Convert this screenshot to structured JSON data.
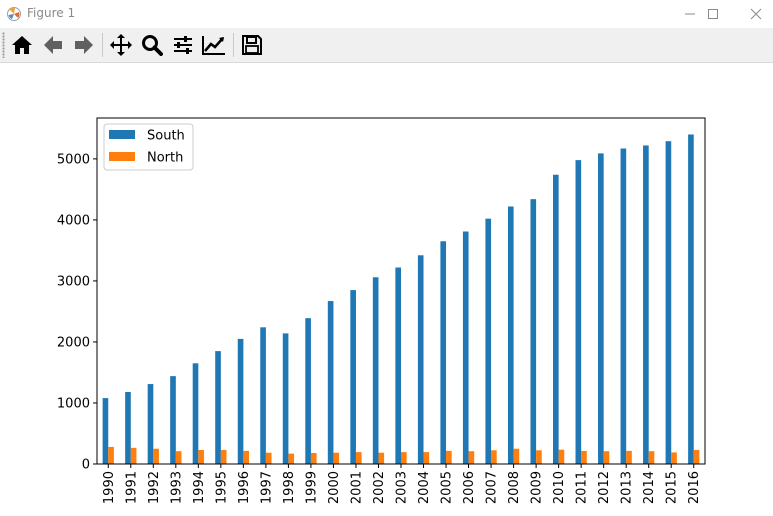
{
  "window": {
    "title": "Figure 1",
    "minimize_icon": "minimize-icon",
    "maximize_icon": "maximize-icon",
    "close_icon": "close-icon"
  },
  "toolbar": {
    "buttons": [
      {
        "name": "home-button",
        "icon": "home-icon"
      },
      {
        "name": "back-button",
        "icon": "arrow-left-icon"
      },
      {
        "name": "forward-button",
        "icon": "arrow-right-icon"
      },
      {
        "name": "pan-button",
        "icon": "move-icon"
      },
      {
        "name": "zoom-button",
        "icon": "magnifier-icon"
      },
      {
        "name": "configure-subplots-button",
        "icon": "sliders-icon"
      },
      {
        "name": "edit-axis-button",
        "icon": "line-chart-icon"
      },
      {
        "name": "save-button",
        "icon": "floppy-disk-icon"
      }
    ]
  },
  "chart_data": {
    "type": "bar",
    "categories": [
      "1990",
      "1991",
      "1992",
      "1993",
      "1994",
      "1995",
      "1996",
      "1997",
      "1998",
      "1999",
      "2000",
      "2001",
      "2002",
      "2003",
      "2004",
      "2005",
      "2006",
      "2007",
      "2008",
      "2009",
      "2010",
      "2011",
      "2012",
      "2013",
      "2014",
      "2015",
      "2016"
    ],
    "series": [
      {
        "name": "South",
        "color": "#1f77b4",
        "values": [
          1080,
          1180,
          1310,
          1440,
          1650,
          1850,
          2050,
          2240,
          2140,
          2390,
          2670,
          2850,
          3060,
          3220,
          3420,
          3650,
          3810,
          4020,
          4220,
          4340,
          4740,
          4980,
          5090,
          5170,
          5220,
          5290,
          5400
        ]
      },
      {
        "name": "North",
        "color": "#ff7f0e",
        "values": [
          280,
          265,
          250,
          210,
          230,
          230,
          215,
          185,
          170,
          180,
          185,
          195,
          185,
          195,
          195,
          215,
          210,
          225,
          250,
          225,
          235,
          215,
          210,
          215,
          210,
          190,
          230
        ]
      }
    ],
    "yticks": [
      "0",
      "1000",
      "2000",
      "3000",
      "4000",
      "5000"
    ],
    "ylim": [
      0,
      5670
    ],
    "xlabel": "",
    "ylabel": "",
    "legend_position": "top-left",
    "grid": false
  }
}
